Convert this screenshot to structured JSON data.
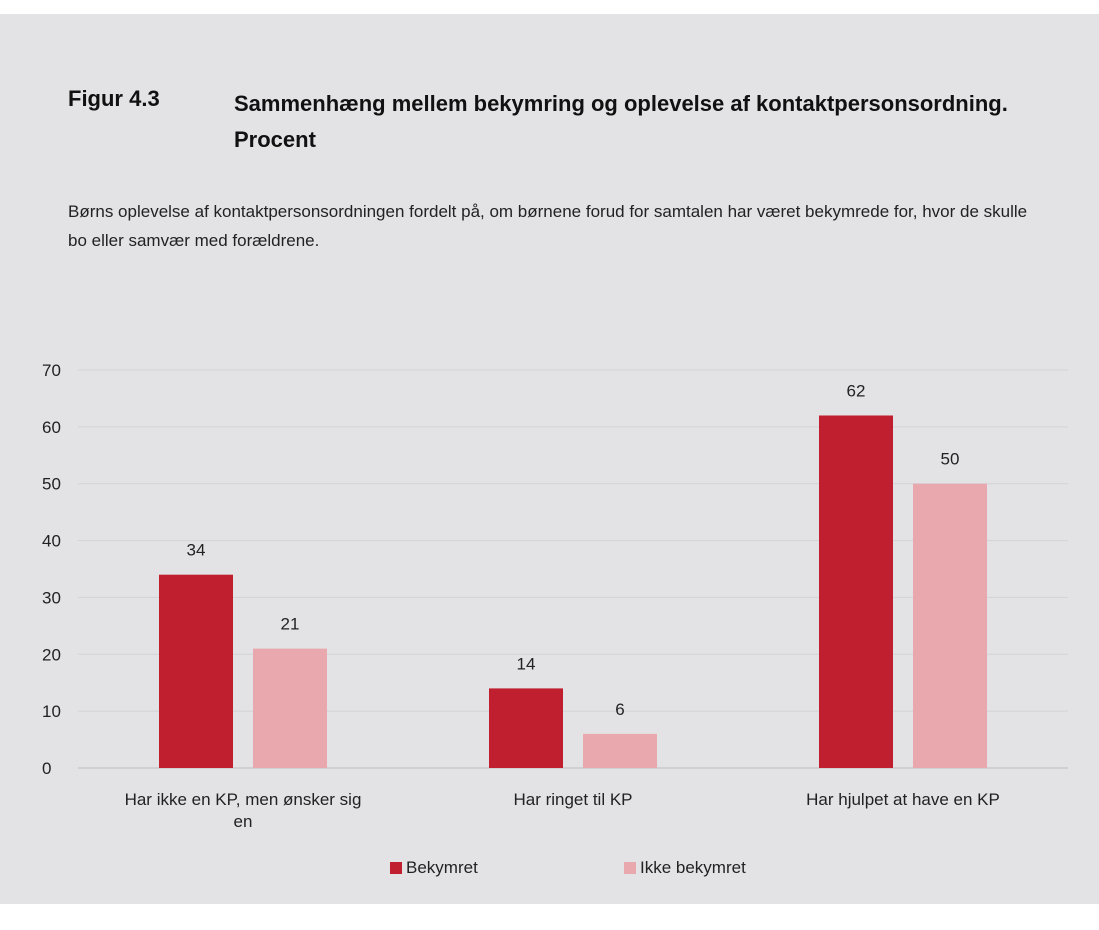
{
  "figure": {
    "label": "Figur 4.3",
    "title": "Sammenhæng mellem bekymring og oplevelse af kontaktpersonsordning. Procent",
    "description": "Børns oplevelse af kontaktpersonsordningen fordelt på, om børnene forud for samtalen har været bekymrede for, hvor de skulle bo eller samvær med forældrene."
  },
  "chart_data": {
    "type": "bar",
    "categories": [
      "Har ikke en KP, men ønsker sig en",
      "Har ringet til KP",
      "Har hjulpet at have en KP"
    ],
    "series": [
      {
        "name": "Bekymret",
        "values": [
          34,
          14,
          62
        ],
        "color": "#c01f30"
      },
      {
        "name": "Ikke bekymret",
        "values": [
          21,
          6,
          50
        ],
        "color": "#e8a8ad"
      }
    ],
    "yticks": [
      0,
      10,
      20,
      30,
      40,
      50,
      60,
      70
    ],
    "ylim": [
      0,
      70
    ],
    "grid": true,
    "legend": "bottom"
  }
}
